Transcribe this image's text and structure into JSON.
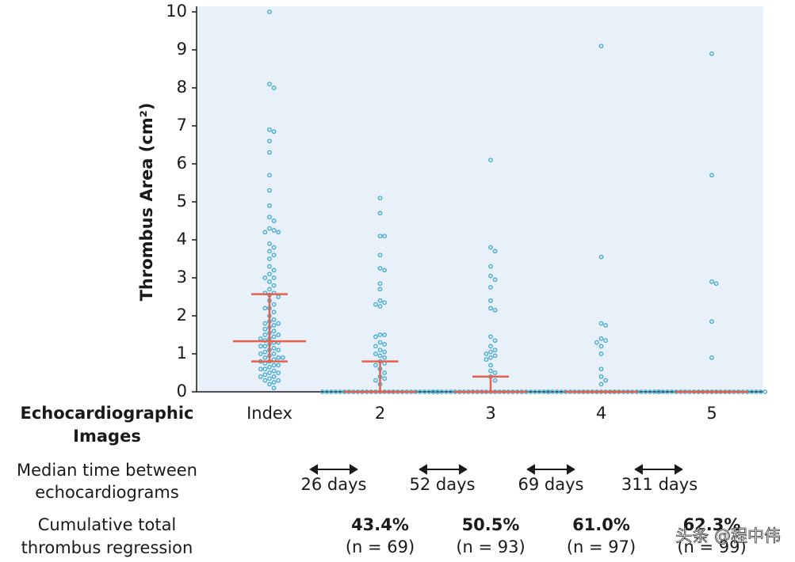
{
  "chart_data": {
    "type": "beeswarm",
    "y_label": "Thrombus Area (cm²)",
    "x_label_lines": [
      "Echocardiographic",
      "Images"
    ],
    "categories": [
      "Index",
      "2",
      "3",
      "4",
      "5"
    ],
    "ylim": [
      0,
      10
    ],
    "yticks": [
      0,
      1,
      2,
      3,
      4,
      5,
      6,
      7,
      8,
      9,
      10
    ],
    "point_color": "#3fa7cf",
    "summary_color": "#e8604c",
    "background": "#e8f1f9",
    "values": [
      [
        10,
        8.1,
        8.0,
        6.9,
        6.85,
        6.6,
        6.3,
        5.7,
        5.3,
        4.9,
        4.6,
        4.5,
        4.3,
        4.25,
        4.2,
        4.2,
        3.9,
        3.8,
        3.7,
        3.6,
        3.5,
        3.3,
        3.2,
        3.1,
        3.0,
        3.0,
        2.9,
        2.8,
        2.7,
        2.6,
        2.6,
        2.55,
        2.5,
        2.4,
        2.3,
        2.2,
        2.2,
        2.1,
        2.0,
        1.9,
        1.85,
        1.8,
        1.8,
        1.75,
        1.7,
        1.65,
        1.6,
        1.55,
        1.5,
        1.5,
        1.45,
        1.4,
        1.4,
        1.35,
        1.3,
        1.3,
        1.25,
        1.2,
        1.2,
        1.15,
        1.1,
        1.1,
        1.05,
        1.0,
        1.0,
        0.95,
        0.9,
        0.9,
        0.9,
        0.85,
        0.8,
        0.8,
        0.75,
        0.7,
        0.7,
        0.65,
        0.6,
        0.6,
        0.55,
        0.5,
        0.5,
        0.45,
        0.4,
        0.4,
        0.35,
        0.3,
        0.3,
        0.25,
        0.2,
        0.1
      ],
      [
        5.1,
        4.7,
        4.1,
        4.1,
        3.6,
        3.25,
        3.2,
        2.85,
        2.7,
        2.4,
        2.35,
        2.3,
        2.25,
        1.5,
        1.5,
        1.45,
        1.3,
        1.25,
        1.2,
        1.1,
        1.05,
        1.0,
        0.95,
        0.9,
        0.8,
        0.75,
        0.7,
        0.6,
        0.5,
        0.4,
        0.35,
        0.3,
        0.2,
        0,
        0,
        0,
        0,
        0,
        0,
        0,
        0,
        0,
        0,
        0,
        0,
        0,
        0,
        0,
        0,
        0,
        0,
        0,
        0,
        0,
        0,
        0,
        0,
        0,
        0,
        0
      ],
      [
        6.1,
        3.8,
        3.7,
        3.3,
        3.05,
        2.95,
        2.75,
        2.4,
        2.2,
        2.15,
        1.45,
        1.35,
        1.2,
        1.1,
        1.05,
        1.0,
        0.95,
        0.9,
        0.85,
        0.7,
        0.55,
        0.5,
        0.4,
        0.3,
        0,
        0,
        0,
        0,
        0,
        0,
        0,
        0,
        0,
        0,
        0,
        0,
        0,
        0,
        0,
        0,
        0,
        0,
        0,
        0,
        0,
        0,
        0,
        0,
        0,
        0,
        0
      ],
      [
        9.1,
        3.55,
        1.8,
        1.75,
        1.4,
        1.35,
        1.3,
        1.2,
        1.0,
        0.6,
        0.4,
        0.3,
        0.2,
        0,
        0,
        0,
        0,
        0,
        0,
        0,
        0,
        0,
        0,
        0,
        0,
        0,
        0,
        0,
        0,
        0,
        0,
        0,
        0,
        0,
        0,
        0,
        0,
        0,
        0
      ],
      [
        8.9,
        5.7,
        2.9,
        2.85,
        1.85,
        0.9,
        0,
        0,
        0,
        0,
        0,
        0,
        0,
        0,
        0,
        0,
        0,
        0,
        0,
        0,
        0,
        0,
        0,
        0,
        0,
        0,
        0,
        0,
        0,
        0,
        0
      ]
    ],
    "medians": [
      1.33,
      0,
      0,
      0,
      0
    ],
    "q1": [
      0.8,
      0,
      0,
      0,
      0
    ],
    "q3": [
      2.57,
      0.8,
      0.4,
      0,
      0
    ],
    "interval_label_lines": [
      "Median time between",
      "echocardiograms"
    ],
    "intervals": [
      "26 days",
      "52 days",
      "69 days",
      "311 days"
    ],
    "regression_label_lines": [
      "Cumulative total",
      "thrombus regression"
    ],
    "regression": [
      {
        "percent": "43.4%",
        "n": "(n = 69)"
      },
      {
        "percent": "50.5%",
        "n": "(n = 93)"
      },
      {
        "percent": "61.0%",
        "n": "(n = 97)"
      },
      {
        "percent": "62.3%",
        "n": "(n = 99)"
      }
    ],
    "watermark": "头条 @程中伟"
  }
}
